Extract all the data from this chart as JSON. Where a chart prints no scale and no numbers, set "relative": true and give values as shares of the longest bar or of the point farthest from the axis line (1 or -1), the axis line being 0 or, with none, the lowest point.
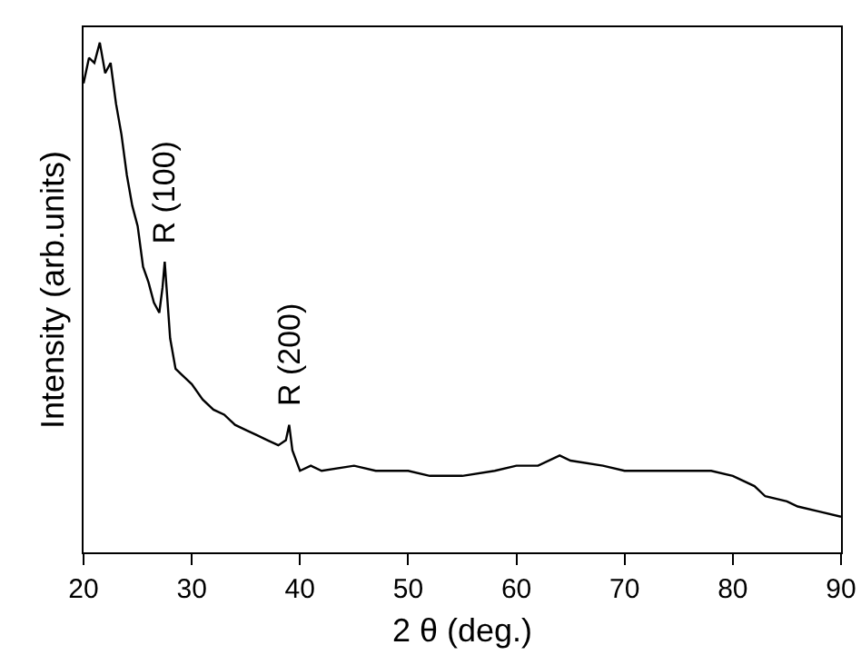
{
  "chart_data": {
    "type": "line",
    "relative": true,
    "xlabel": "2 θ (deg.)",
    "ylabel": "Intensity (arb.units)",
    "xlim": [
      20,
      90
    ],
    "xticks": [
      20,
      30,
      40,
      50,
      60,
      70,
      80,
      90
    ],
    "line_style": "solid",
    "x": [
      20,
      20.5,
      21,
      21.5,
      22,
      22.5,
      23,
      23.5,
      24,
      24.5,
      25,
      25.5,
      26,
      26.5,
      27,
      27.3,
      27.5,
      27.8,
      28,
      28.5,
      29,
      30,
      31,
      32,
      33,
      34,
      35,
      36,
      37,
      38,
      38.7,
      39,
      39.3,
      40,
      41,
      42,
      45,
      47,
      50,
      52,
      55,
      58,
      60,
      62,
      64,
      65,
      68,
      70,
      72,
      75,
      78,
      80,
      82,
      83,
      85,
      86,
      88,
      90
    ],
    "series": [
      {
        "color": "#000000",
        "values": [
          0.92,
          0.97,
          0.96,
          1.0,
          0.94,
          0.96,
          0.88,
          0.82,
          0.74,
          0.68,
          0.64,
          0.56,
          0.53,
          0.49,
          0.47,
          0.52,
          0.57,
          0.48,
          0.42,
          0.36,
          0.35,
          0.33,
          0.3,
          0.28,
          0.27,
          0.25,
          0.24,
          0.23,
          0.22,
          0.21,
          0.22,
          0.25,
          0.2,
          0.16,
          0.17,
          0.16,
          0.17,
          0.16,
          0.16,
          0.15,
          0.15,
          0.16,
          0.17,
          0.17,
          0.19,
          0.18,
          0.17,
          0.16,
          0.16,
          0.16,
          0.16,
          0.15,
          0.13,
          0.11,
          0.1,
          0.09,
          0.08,
          0.07
        ]
      }
    ],
    "annotations": [
      {
        "text": "R (100)",
        "x": 27.5,
        "y": 0.57
      },
      {
        "text": "R (200)",
        "x": 39,
        "y": 0.25
      }
    ]
  }
}
